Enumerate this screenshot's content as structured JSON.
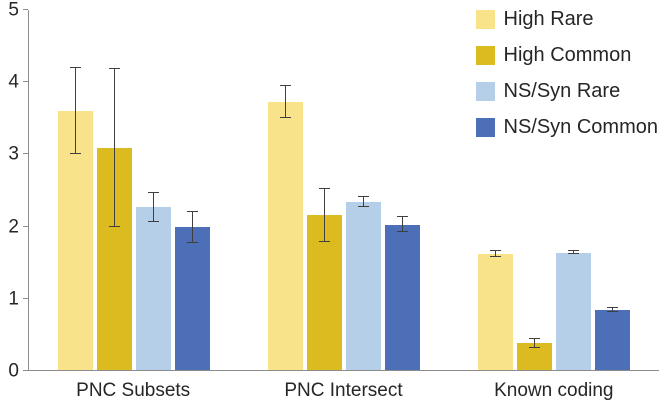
{
  "chart_data": {
    "type": "bar",
    "title": "",
    "xlabel": "",
    "ylabel": "",
    "categories": [
      "PNC Subsets",
      "PNC Intersect",
      "Known coding"
    ],
    "series": [
      {
        "name": "High Rare",
        "color": "#F8E28A",
        "values": [
          3.6,
          3.72,
          1.61
        ],
        "errors": [
          0.6,
          0.22,
          0.04
        ]
      },
      {
        "name": "High Common",
        "color": "#DCBB20",
        "values": [
          3.08,
          2.15,
          0.37
        ],
        "errors": [
          1.1,
          0.37,
          0.06
        ]
      },
      {
        "name": "NS/Syn Rare",
        "color": "#B5CFE9",
        "values": [
          2.26,
          2.33,
          1.63
        ],
        "errors": [
          0.2,
          0.07,
          0.02
        ]
      },
      {
        "name": "NS/Syn Common",
        "color": "#4C6FB7",
        "values": [
          1.98,
          2.02,
          0.83
        ],
        "errors": [
          0.22,
          0.1,
          0.03
        ]
      }
    ],
    "ylim": [
      0,
      5
    ],
    "yticks": [
      0,
      1,
      2,
      3,
      4,
      5
    ],
    "grid": false,
    "legend_position": "top-right",
    "axis_color": "#8c8c8c",
    "error_bar_color": "#3f3f3f"
  }
}
